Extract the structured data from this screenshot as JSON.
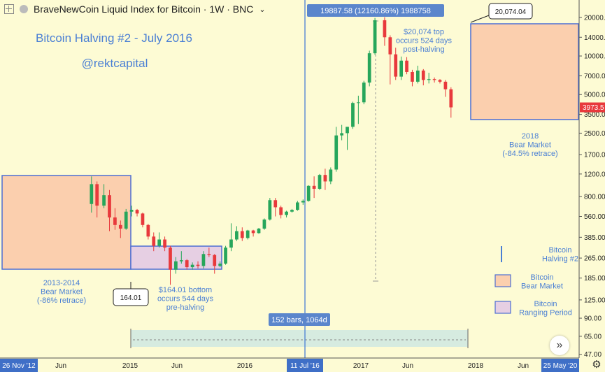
{
  "header": {
    "symbol": "BraveNewCoin Liquid Index for Bitcoin · 1W · BNC",
    "dropdown_icon": "chevron-down-icon",
    "expand_icon": "plus-square-icon",
    "status_icon": "dot-icon"
  },
  "annotations": {
    "title": "Bitcoin Halving #2 - July 2016",
    "handle": "@rektcapital",
    "bear1": [
      "2013-2014",
      "Bear Market",
      "(-86% retrace)"
    ],
    "bottom": [
      "$164.01 bottom",
      "occurs 544 days",
      "pre-halving"
    ],
    "top": [
      "$20,074 top",
      "occurs 524 days",
      "post-halving"
    ],
    "bear2": [
      "2018",
      "Bear Market",
      "(-84.5% retrace)"
    ],
    "callout_top": "20,074.04",
    "callout_bottom": "164.01",
    "measure_top": "19887.58 (12160.86%) 1988758",
    "measure_bottom": "152 bars, 1064d"
  },
  "legend": {
    "halving": [
      "Bitcoin",
      "Halving #2"
    ],
    "bear": [
      "Bitcoin",
      "Bear Market"
    ],
    "ranging": [
      "Bitcoin",
      "Ranging Period"
    ]
  },
  "colors": {
    "background": "#fdfbd4",
    "up": "#26a65b",
    "down": "#e8393c",
    "annotation_text": "#4a7fd4",
    "bear_fill": "#fbcfae",
    "bear_border": "#4d6ed3",
    "ranging_fill": "#e6cfe3",
    "halving_line": "#4a7fd4",
    "measure_fill": "#d6ebe0",
    "price_label": "#e8393c"
  },
  "chart_data": {
    "type": "candlestick",
    "scale": "log",
    "ylim": [
      44,
      26000
    ],
    "y_ticks": [
      "20000.00",
      "14000.00",
      "10000.00",
      "7000.00",
      "5000.00",
      "3500.00",
      "2500.00",
      "1700.00",
      "1200.00",
      "800.00",
      "560.00",
      "385.00",
      "265.00",
      "185.00",
      "125.00",
      "90.00",
      "65.00",
      "47.00"
    ],
    "x_ticks": [
      "Jun",
      "2015",
      "Jun",
      "2016",
      "2017",
      "Jun",
      "2018",
      "Jun"
    ],
    "x_start_label": "26 Nov '12",
    "x_halving_label": "11 Jul '16",
    "x_end_label": "25 May '20",
    "last_price": "3973.5",
    "halving_date": "2016-07-11",
    "series": [
      {
        "date": "2013-11-25",
        "open": 700,
        "high": 1150,
        "low": 600,
        "close": 1000
      },
      {
        "date": "2013-12-23",
        "open": 1000,
        "high": 1050,
        "low": 550,
        "close": 680
      },
      {
        "date": "2014-01-27",
        "open": 680,
        "high": 1000,
        "low": 650,
        "close": 820
      },
      {
        "date": "2014-02-24",
        "open": 820,
        "high": 900,
        "low": 430,
        "close": 550
      },
      {
        "date": "2014-03-24",
        "open": 550,
        "high": 650,
        "low": 440,
        "close": 480
      },
      {
        "date": "2014-04-21",
        "open": 480,
        "high": 520,
        "low": 380,
        "close": 450
      },
      {
        "date": "2014-05-19",
        "open": 450,
        "high": 640,
        "low": 440,
        "close": 610
      },
      {
        "date": "2014-06-16",
        "open": 610,
        "high": 680,
        "low": 560,
        "close": 630
      },
      {
        "date": "2014-07-14",
        "open": 630,
        "high": 640,
        "low": 560,
        "close": 590
      },
      {
        "date": "2014-08-11",
        "open": 590,
        "high": 600,
        "low": 460,
        "close": 480
      },
      {
        "date": "2014-09-08",
        "open": 480,
        "high": 490,
        "low": 370,
        "close": 390
      },
      {
        "date": "2014-10-06",
        "open": 390,
        "high": 420,
        "low": 300,
        "close": 330
      },
      {
        "date": "2014-11-03",
        "open": 330,
        "high": 420,
        "low": 320,
        "close": 370
      },
      {
        "date": "2014-12-01",
        "open": 370,
        "high": 390,
        "low": 300,
        "close": 320
      },
      {
        "date": "2014-12-29",
        "open": 320,
        "high": 330,
        "low": 164.01,
        "close": 215
      },
      {
        "date": "2015-01-26",
        "open": 215,
        "high": 270,
        "low": 200,
        "close": 250
      },
      {
        "date": "2015-02-23",
        "open": 250,
        "high": 300,
        "low": 240,
        "close": 255
      },
      {
        "date": "2015-03-23",
        "open": 255,
        "high": 260,
        "low": 215,
        "close": 225
      },
      {
        "date": "2015-04-20",
        "open": 225,
        "high": 245,
        "low": 215,
        "close": 235
      },
      {
        "date": "2015-05-18",
        "open": 235,
        "high": 250,
        "low": 220,
        "close": 230
      },
      {
        "date": "2015-06-15",
        "open": 230,
        "high": 300,
        "low": 220,
        "close": 285
      },
      {
        "date": "2015-07-13",
        "open": 285,
        "high": 320,
        "low": 270,
        "close": 280
      },
      {
        "date": "2015-08-10",
        "open": 280,
        "high": 285,
        "low": 200,
        "close": 230
      },
      {
        "date": "2015-09-07",
        "open": 230,
        "high": 250,
        "low": 225,
        "close": 240
      },
      {
        "date": "2015-10-05",
        "open": 240,
        "high": 330,
        "low": 235,
        "close": 320
      },
      {
        "date": "2015-11-02",
        "open": 320,
        "high": 495,
        "low": 300,
        "close": 370
      },
      {
        "date": "2015-11-30",
        "open": 370,
        "high": 470,
        "low": 360,
        "close": 430
      },
      {
        "date": "2015-12-28",
        "open": 430,
        "high": 460,
        "low": 360,
        "close": 380
      },
      {
        "date": "2016-01-25",
        "open": 380,
        "high": 440,
        "low": 370,
        "close": 435
      },
      {
        "date": "2016-02-22",
        "open": 435,
        "high": 440,
        "low": 390,
        "close": 415
      },
      {
        "date": "2016-03-21",
        "open": 415,
        "high": 455,
        "low": 410,
        "close": 450
      },
      {
        "date": "2016-04-18",
        "open": 450,
        "high": 540,
        "low": 440,
        "close": 530
      },
      {
        "date": "2016-05-16",
        "open": 530,
        "high": 780,
        "low": 520,
        "close": 750
      },
      {
        "date": "2016-06-13",
        "open": 750,
        "high": 780,
        "low": 560,
        "close": 660
      },
      {
        "date": "2016-07-11",
        "open": 660,
        "high": 680,
        "low": 540,
        "close": 575
      },
      {
        "date": "2016-08-08",
        "open": 575,
        "high": 620,
        "low": 550,
        "close": 610
      },
      {
        "date": "2016-09-05",
        "open": 610,
        "high": 640,
        "low": 600,
        "close": 630
      },
      {
        "date": "2016-10-03",
        "open": 630,
        "high": 740,
        "low": 620,
        "close": 720
      },
      {
        "date": "2016-10-31",
        "open": 720,
        "high": 760,
        "low": 690,
        "close": 740
      },
      {
        "date": "2016-11-28",
        "open": 740,
        "high": 980,
        "low": 730,
        "close": 970
      },
      {
        "date": "2016-12-26",
        "open": 970,
        "high": 1150,
        "low": 780,
        "close": 920
      },
      {
        "date": "2017-01-23",
        "open": 920,
        "high": 1200,
        "low": 900,
        "close": 1180
      },
      {
        "date": "2017-02-20",
        "open": 1180,
        "high": 1320,
        "low": 900,
        "close": 1050
      },
      {
        "date": "2017-03-20",
        "open": 1050,
        "high": 1350,
        "low": 1000,
        "close": 1300
      },
      {
        "date": "2017-04-17",
        "open": 1300,
        "high": 2800,
        "low": 1250,
        "close": 2400
      },
      {
        "date": "2017-05-15",
        "open": 2400,
        "high": 2900,
        "low": 2200,
        "close": 2500
      },
      {
        "date": "2017-06-12",
        "open": 2500,
        "high": 2600,
        "low": 1850,
        "close": 2800
      },
      {
        "date": "2017-07-10",
        "open": 2800,
        "high": 4400,
        "low": 2700,
        "close": 4300
      },
      {
        "date": "2017-08-07",
        "open": 4300,
        "high": 4900,
        "low": 2950,
        "close": 4350
      },
      {
        "date": "2017-09-04",
        "open": 4350,
        "high": 6400,
        "low": 4200,
        "close": 6200
      },
      {
        "date": "2017-10-02",
        "open": 6200,
        "high": 11000,
        "low": 5800,
        "close": 10500
      },
      {
        "date": "2017-10-30",
        "open": 10500,
        "high": 19800,
        "low": 10200,
        "close": 19000
      },
      {
        "date": "2017-12-18",
        "open": 19000,
        "high": 20074.04,
        "low": 12000,
        "close": 14000
      },
      {
        "date": "2018-01-15",
        "open": 14000,
        "high": 14500,
        "low": 6000,
        "close": 10300
      },
      {
        "date": "2018-02-12",
        "open": 10300,
        "high": 11600,
        "low": 6500,
        "close": 6900
      },
      {
        "date": "2018-03-12",
        "open": 6900,
        "high": 9900,
        "low": 6500,
        "close": 9200
      },
      {
        "date": "2018-04-09",
        "open": 9200,
        "high": 9800,
        "low": 7200,
        "close": 7500
      },
      {
        "date": "2018-05-07",
        "open": 7500,
        "high": 7800,
        "low": 5800,
        "close": 6300
      },
      {
        "date": "2018-06-04",
        "open": 6300,
        "high": 8400,
        "low": 6100,
        "close": 7700
      },
      {
        "date": "2018-07-02",
        "open": 7700,
        "high": 7900,
        "low": 5900,
        "close": 6500
      },
      {
        "date": "2018-07-30",
        "open": 6500,
        "high": 7400,
        "low": 6100,
        "close": 6600
      },
      {
        "date": "2018-08-27",
        "open": 6600,
        "high": 6800,
        "low": 6200,
        "close": 6500
      },
      {
        "date": "2018-09-24",
        "open": 6500,
        "high": 6600,
        "low": 6100,
        "close": 6300
      },
      {
        "date": "2018-10-22",
        "open": 6300,
        "high": 6500,
        "low": 4800,
        "close": 5500
      },
      {
        "date": "2018-11-19",
        "open": 5500,
        "high": 5700,
        "low": 3300,
        "close": 3973.5
      }
    ]
  }
}
